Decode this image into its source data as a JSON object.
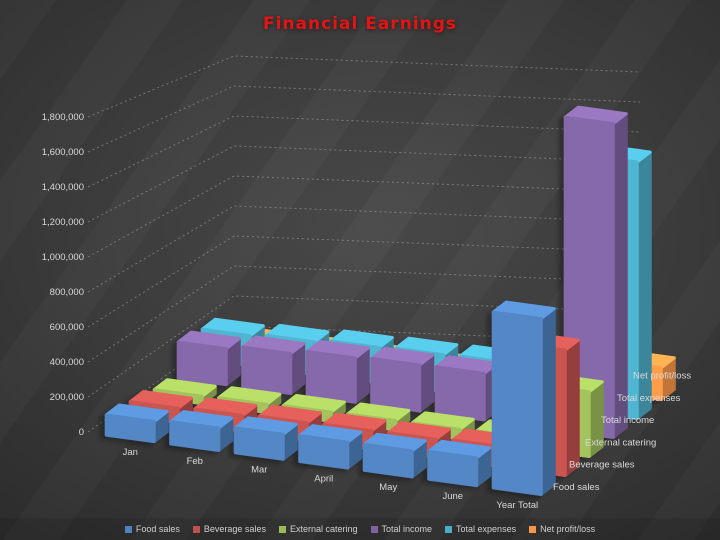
{
  "title": {
    "text": "Financial Earnings",
    "color": "#e51414"
  },
  "chart_data": {
    "type": "bar",
    "projection": "3d",
    "title": "Financial Earnings",
    "categories": [
      "Jan",
      "Feb",
      "Mar",
      "April",
      "May",
      "June",
      "Year Total"
    ],
    "series": [
      {
        "name": "Food sales",
        "color": "#4f81bd",
        "values": [
          115000,
          120000,
          126000,
          124000,
          118000,
          120000,
          723000
        ]
      },
      {
        "name": "Beverage sales",
        "color": "#c0504d",
        "values": [
          88000,
          91000,
          94000,
          93000,
          90000,
          92000,
          548000
        ]
      },
      {
        "name": "External catering",
        "color": "#9bbb59",
        "values": [
          48000,
          50000,
          53000,
          52000,
          49000,
          50000,
          302000
        ]
      },
      {
        "name": "Total income",
        "color": "#8064a2",
        "values": [
          251000,
          261000,
          273000,
          269000,
          257000,
          262000,
          1573000
        ]
      },
      {
        "name": "Total expenses",
        "color": "#4bacc6",
        "values": [
          225000,
          230000,
          238000,
          235000,
          228000,
          231000,
          1387000
        ]
      },
      {
        "name": "Net profit/loss",
        "color": "#f79646",
        "values": [
          26000,
          31000,
          35000,
          34000,
          29000,
          31000,
          186000
        ]
      }
    ],
    "ylim": [
      0,
      1800000
    ],
    "ytick_step": 200000,
    "ytick_labels": [
      "0",
      "200,000",
      "400,000",
      "600,000",
      "800,000",
      "1,000,000",
      "1,200,000",
      "1,400,000",
      "1,600,000",
      "1,800,000"
    ],
    "series_axis_labels": [
      "Food sales",
      "Beverage sales",
      "External catering",
      "Total income",
      "Total expenses",
      "Net profit/loss"
    ],
    "grid": "dashed",
    "legend_position": "bottom",
    "grid_color": "#aaaaaa",
    "text_color": "#d9d9d9"
  },
  "legend": {
    "items": [
      {
        "label": "Food sales",
        "color": "#4f81bd"
      },
      {
        "label": "Beverage sales",
        "color": "#c0504d"
      },
      {
        "label": "External catering",
        "color": "#9bbb59"
      },
      {
        "label": "Total income",
        "color": "#8064a2"
      },
      {
        "label": "Total expenses",
        "color": "#4bacc6"
      },
      {
        "label": "Net profit/loss",
        "color": "#f79646"
      }
    ]
  }
}
